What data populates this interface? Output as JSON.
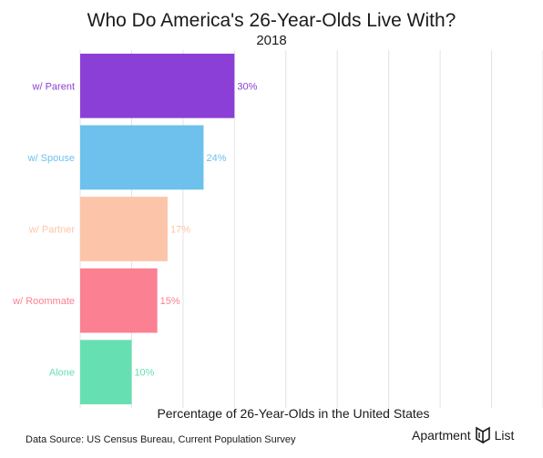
{
  "header": {
    "title": "Who Do America's 26-Year-Olds Live With?",
    "subtitle": "2018"
  },
  "footer": {
    "source": "Data Source: US Census Bureau, Current Population Survey",
    "brand_left": "Apartment",
    "brand_right": "List",
    "brand_icon": "apartment-list-logo-icon"
  },
  "chart_data": {
    "type": "bar",
    "orientation": "horizontal",
    "title": "Who Do America's 26-Year-Olds Live With?",
    "subtitle": "2018",
    "xlabel": "Percentage of 26-Year-Olds in the United States",
    "ylabel": "",
    "categories": [
      "w/ Parent",
      "w/ Spouse",
      "w/ Partner",
      "w/ Roommate",
      "Alone"
    ],
    "values": [
      30,
      24,
      17,
      15,
      10
    ],
    "data_labels": [
      "30%",
      "24%",
      "17%",
      "15%",
      "10%"
    ],
    "colors": [
      "#8b3fd6",
      "#6ec1ec",
      "#fcc5a9",
      "#fb8092",
      "#66e0b2"
    ],
    "xlim": [
      0,
      90
    ],
    "grid": true,
    "legend": "none"
  }
}
